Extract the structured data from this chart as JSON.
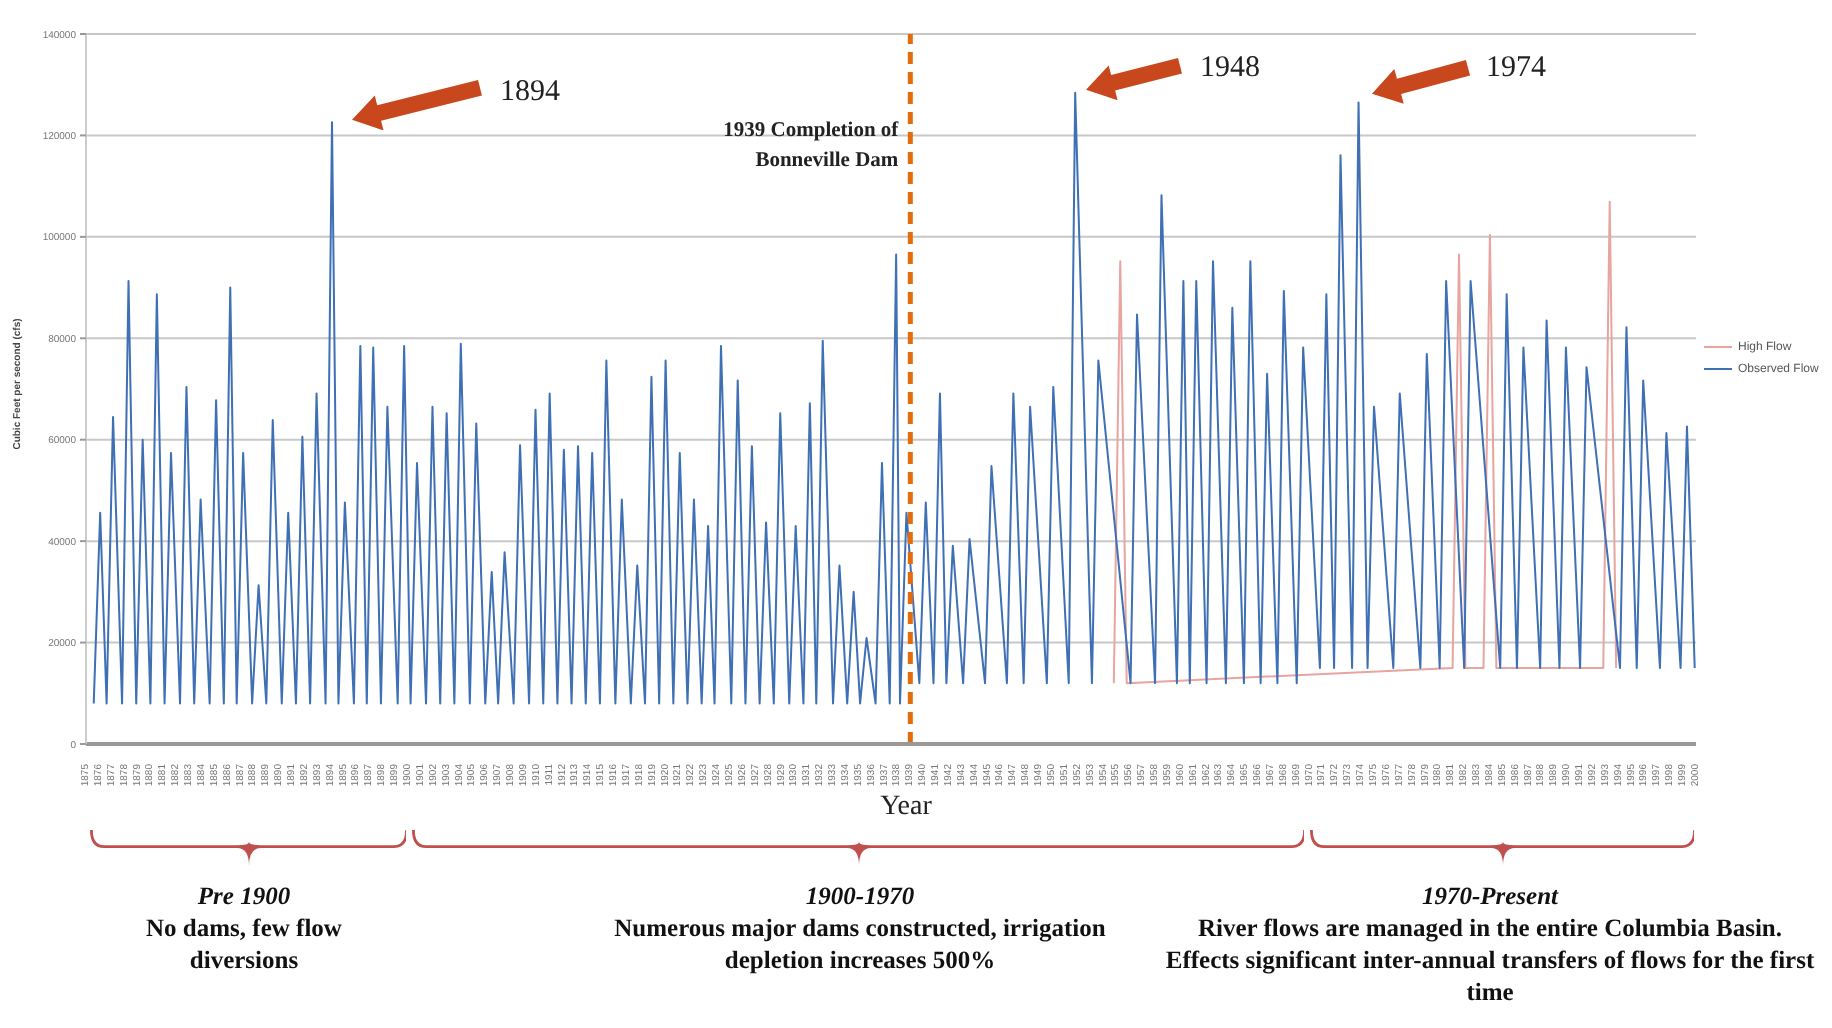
{
  "chart_data": {
    "type": "line",
    "xlabel": "Year",
    "ylabel": "Cubic Feet per second (cfs)",
    "xlim": [
      1875,
      2000
    ],
    "xticks": [
      1875,
      1876,
      1877,
      1878,
      1879,
      1880,
      1881,
      1882,
      1883,
      1884,
      1885,
      1886,
      1887,
      1888,
      1889,
      1890,
      1891,
      1892,
      1893,
      1894,
      1895,
      1896,
      1897,
      1898,
      1899,
      1900,
      1901,
      1902,
      1903,
      1904,
      1905,
      1906,
      1907,
      1908,
      1909,
      1910,
      1911,
      1912,
      1913,
      1914,
      1915,
      1916,
      1917,
      1918,
      1919,
      1920,
      1921,
      1922,
      1923,
      1924,
      1925,
      1926,
      1927,
      1928,
      1929,
      1930,
      1931,
      1932,
      1933,
      1934,
      1935,
      1936,
      1937,
      1938,
      1939,
      1940,
      1941,
      1942,
      1943,
      1944,
      1945,
      1946,
      1947,
      1948,
      1949,
      1950,
      1951,
      1952,
      1953,
      1954,
      1955,
      1956,
      1957,
      1958,
      1959,
      1960,
      1961,
      1962,
      1963,
      1964,
      1965,
      1966,
      1967,
      1968,
      1969,
      1970,
      1971,
      1972,
      1973,
      1974,
      1975,
      1976,
      1977,
      1978,
      1979,
      1980,
      1981,
      1982,
      1983,
      1984,
      1985,
      1986,
      1987,
      1988,
      1989,
      1990,
      1991,
      1992,
      1993,
      1994,
      1995,
      1996,
      1997,
      1998,
      1999,
      2000
    ],
    "ylim": [
      0,
      140000
    ],
    "yticks": [
      0,
      20000,
      40000,
      60000,
      80000,
      100000,
      120000,
      140000
    ],
    "grid": "y",
    "legend": "right",
    "series": [
      {
        "name": "High Flow",
        "color": "#e8a49e",
        "x": [
          1954.8,
          1955.3,
          1955.8,
          1981.1,
          1981.6,
          1982.1,
          1983.5,
          1984.0,
          1984.5,
          1992.8,
          1993.3,
          1993.8
        ],
        "values": [
          12000,
          95200,
          12000,
          15000,
          96500,
          15000,
          15000,
          100400,
          15000,
          15000,
          106900,
          15000
        ]
      },
      {
        "name": "Observed Flow",
        "color": "#3f6fb5",
        "x": [
          1875.6,
          1876.1,
          1876.6,
          1877.1,
          1877.8,
          1878.3,
          1878.9,
          1879.4,
          1880.0,
          1880.5,
          1881.1,
          1881.6,
          1882.3,
          1882.8,
          1883.4,
          1883.9,
          1884.6,
          1885.1,
          1885.7,
          1886.2,
          1886.7,
          1887.2,
          1887.9,
          1888.4,
          1889.0,
          1889.5,
          1890.2,
          1890.7,
          1891.3,
          1891.8,
          1892.4,
          1892.9,
          1893.6,
          1894.1,
          1894.6,
          1895.1,
          1895.8,
          1896.3,
          1896.8,
          1897.3,
          1897.9,
          1898.4,
          1899.2,
          1899.7,
          1900.2,
          1900.7,
          1901.4,
          1901.9,
          1902.5,
          1903.0,
          1903.6,
          1904.1,
          1904.8,
          1905.3,
          1906.0,
          1906.5,
          1907.0,
          1907.5,
          1908.2,
          1908.7,
          1909.4,
          1909.9,
          1910.5,
          1911.0,
          1911.6,
          1912.1,
          1912.7,
          1913.2,
          1913.8,
          1914.3,
          1914.9,
          1915.4,
          1916.1,
          1916.6,
          1917.3,
          1917.8,
          1918.4,
          1918.9,
          1919.5,
          1920.0,
          1920.6,
          1921.1,
          1921.7,
          1922.2,
          1922.8,
          1923.3,
          1923.8,
          1924.3,
          1925.1,
          1925.6,
          1926.2,
          1926.7,
          1927.3,
          1927.8,
          1928.4,
          1928.9,
          1929.6,
          1930.1,
          1930.7,
          1931.2,
          1931.7,
          1932.2,
          1933.0,
          1933.5,
          1934.1,
          1934.6,
          1935.1,
          1935.6,
          1936.3,
          1936.8,
          1937.4,
          1937.9,
          1938.2,
          1938.7,
          1939.7,
          1940.2,
          1940.8,
          1941.3,
          1941.8,
          1942.3,
          1943.1,
          1943.6,
          1944.8,
          1945.3,
          1946.5,
          1947.0,
          1947.8,
          1948.3,
          1949.6,
          1950.1,
          1951.3,
          1951.8,
          1953.1,
          1953.6,
          1956.1,
          1956.6,
          1958.0,
          1958.5,
          1959.7,
          1960.2,
          1960.7,
          1961.2,
          1962.0,
          1962.5,
          1963.5,
          1964.0,
          1964.9,
          1965.4,
          1966.2,
          1966.7,
          1967.5,
          1968.0,
          1969.0,
          1969.5,
          1970.8,
          1971.3,
          1971.9,
          1972.4,
          1973.3,
          1973.8,
          1974.5,
          1975.0,
          1976.5,
          1977.0,
          1978.6,
          1979.1,
          1980.1,
          1980.6,
          1982.0,
          1982.5,
          1984.8,
          1985.3,
          1986.1,
          1986.6,
          1987.9,
          1988.4,
          1989.4,
          1989.9,
          1991.0,
          1991.5,
          1994.1,
          1994.6,
          1995.4,
          1995.9,
          1997.2,
          1997.7,
          1998.8,
          1999.3,
          1999.9
        ],
        "values": [
          8000,
          45600,
          8000,
          64500,
          8000,
          91300,
          8000,
          60000,
          8000,
          88700,
          8000,
          57400,
          8000,
          70400,
          8000,
          48200,
          8000,
          67800,
          8000,
          90000,
          8000,
          57400,
          8000,
          31300,
          8000,
          63900,
          8000,
          45600,
          8000,
          60600,
          8000,
          69100,
          8000,
          122600,
          8000,
          47600,
          8000,
          78500,
          8000,
          78200,
          8000,
          66500,
          8000,
          78500,
          8000,
          55400,
          8000,
          66500,
          8000,
          65200,
          8000,
          78900,
          8000,
          63200,
          8000,
          33900,
          8000,
          37800,
          8000,
          58900,
          8000,
          65900,
          8000,
          69100,
          8000,
          58000,
          8000,
          58700,
          8000,
          57400,
          8000,
          75600,
          8000,
          48200,
          8000,
          35200,
          8000,
          72400,
          8000,
          75600,
          8000,
          57400,
          8000,
          48200,
          8000,
          43000,
          8000,
          78500,
          8000,
          71700,
          8000,
          58700,
          8000,
          43700,
          8000,
          65200,
          8000,
          43000,
          8000,
          67200,
          8000,
          79500,
          8000,
          35200,
          8000,
          30000,
          8000,
          20900,
          8000,
          55400,
          8000,
          96500,
          8000,
          45600,
          12000,
          47600,
          12000,
          69100,
          12000,
          39100,
          12000,
          40400,
          12000,
          54800,
          12000,
          69100,
          12000,
          66500,
          12000,
          70400,
          12000,
          128400,
          12000,
          75600,
          12000,
          84700,
          12000,
          108200,
          12000,
          91300,
          12000,
          91300,
          12000,
          95200,
          12000,
          86000,
          12000,
          95200,
          12000,
          73000,
          12000,
          89300,
          12000,
          78200,
          15000,
          88700,
          15000,
          116100,
          15000,
          126500,
          15000,
          66500,
          15000,
          69100,
          15000,
          76900,
          15000,
          91300,
          15000,
          91300,
          15000,
          88700,
          15000,
          78200,
          15000,
          83500,
          15000,
          78200,
          15000,
          74300,
          15000,
          82200,
          15000,
          71700,
          15000,
          61300,
          15000,
          62600,
          15000
        ]
      }
    ],
    "ref_lines": [
      {
        "axis": "x",
        "value": 1939,
        "label": "1939 Completion of Bonneville Dam",
        "color": "#e46c0a",
        "line_style": "dashed"
      }
    ],
    "annotations": [
      "1894",
      "1948",
      "1974",
      "Pre 1900",
      "No dams, few flow diversions",
      "1900-1970",
      "Numerous major dams constructed, irrigation depletion increases 500%",
      "1970-Present",
      "River flows are managed in the entire Columbia Basin. Effects significant inter-annual transfers of flows for the first time"
    ]
  }
}
